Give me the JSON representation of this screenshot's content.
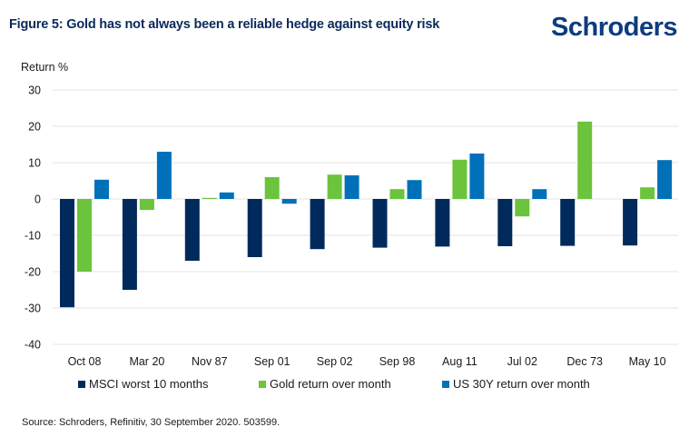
{
  "header": {
    "title": "Figure 5: Gold has not always been a reliable hedge against equity risk",
    "logo": "Schroders"
  },
  "source": "Source: Schroders, Refinitiv, 30 September 2020. 503599.",
  "chart_data": {
    "type": "bar",
    "title": "Figure 5: Gold has not always been a reliable hedge against equity risk",
    "xlabel": "",
    "ylabel": "Return %",
    "ylim": [
      -40,
      30
    ],
    "yticks": [
      30,
      20,
      10,
      0,
      -10,
      -20,
      -30,
      -40
    ],
    "grid": true,
    "legend_position": "bottom",
    "categories": [
      "Oct 08",
      "Mar 20",
      "Nov 87",
      "Sep 01",
      "Sep 02",
      "Sep 98",
      "Aug 11",
      "Jul 02",
      "Dec 73",
      "May 10"
    ],
    "series": [
      {
        "name": "MSCI worst 10 months",
        "color": "#002a5c",
        "values": [
          -29.8,
          -25.0,
          -17.0,
          -16.0,
          -13.8,
          -13.4,
          -13.1,
          -13.0,
          -12.9,
          -12.8
        ]
      },
      {
        "name": "Gold return over month",
        "color": "#6bc43b",
        "values": [
          -20.0,
          -3.0,
          0.3,
          6.0,
          6.7,
          2.7,
          10.8,
          -4.8,
          21.3,
          3.2
        ]
      },
      {
        "name": "US 30Y return over month",
        "color": "#0071b9",
        "values": [
          5.3,
          13.0,
          1.8,
          -1.3,
          6.5,
          5.2,
          12.5,
          2.7,
          null,
          10.7
        ]
      }
    ]
  }
}
